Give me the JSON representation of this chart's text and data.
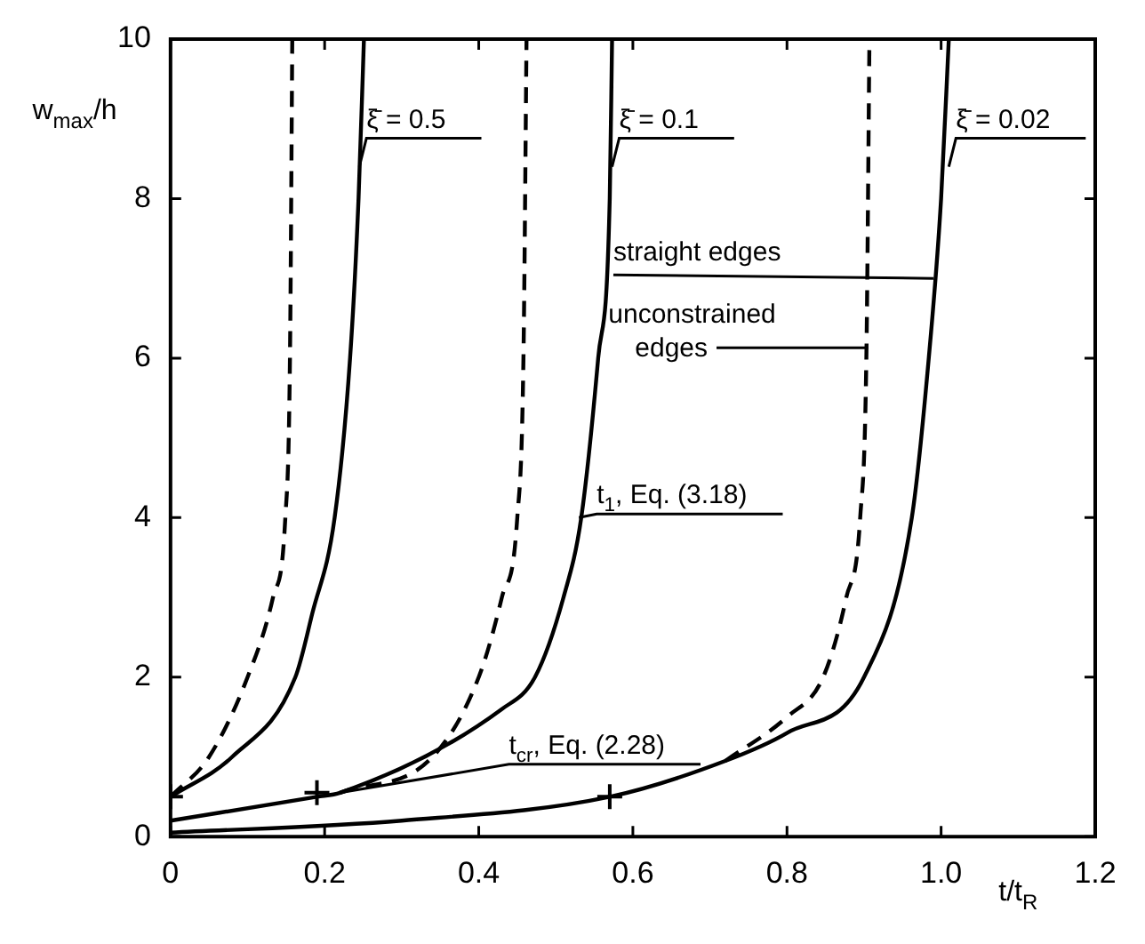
{
  "chart_data": {
    "type": "line",
    "xlabel": "t/t$_{R}$",
    "ylabel": "w$_{max}$/h",
    "xlim": [
      0,
      1.2
    ],
    "xticks": [
      0,
      0.2,
      0.4,
      0.6,
      0.8,
      {
        "value": 1.0,
        "label": "1.0"
      },
      1.2
    ],
    "ylim": [
      0,
      10
    ],
    "yticks": [
      0,
      2,
      4,
      6,
      8,
      10
    ],
    "grid": false,
    "legend": false,
    "marker": "none",
    "series": [
      {
        "color": "#000000",
        "line_style": "solid",
        "x": [
          0,
          0.08,
          0.162,
          0.184,
          0.213,
          0.233,
          0.244,
          0.251
        ],
        "values": [
          0.5,
          1,
          2,
          2.8,
          4,
          6,
          8,
          10
        ]
      },
      {
        "color": "#000000",
        "line_style": "dashed",
        "x": [
          0,
          0.05,
          0.1,
          0.133,
          0.149,
          0.155,
          0.158
        ],
        "values": [
          0.5,
          1,
          2,
          3,
          4,
          6,
          10
        ]
      },
      {
        "color": "#000000",
        "line_style": "solid",
        "x": [
          0,
          0.19,
          0.22,
          0.43,
          0.473,
          0.51,
          0.533,
          0.555,
          0.57,
          0.573
        ],
        "values": [
          0.2,
          0.5,
          0.55,
          1.6,
          2,
          3,
          4,
          6,
          8,
          10
        ]
      },
      {
        "color": "#000000",
        "line_style": "dashed",
        "x": [
          0.22,
          0.34,
          0.4,
          0.43,
          0.45,
          0.458,
          0.462
        ],
        "values": [
          0.55,
          1,
          2,
          3,
          4,
          6,
          10
        ]
      },
      {
        "color": "#000000",
        "line_style": "solid",
        "x": [
          0,
          0.3,
          0.57,
          0.72,
          0.8,
          0.9,
          0.962,
          0.984,
          1.0,
          1.01
        ],
        "values": [
          0.05,
          0.2,
          0.5,
          0.95,
          1.3,
          2,
          4,
          6,
          8,
          10
        ]
      },
      {
        "color": "#000000",
        "line_style": "dashed",
        "x": [
          0.72,
          0.8,
          0.847,
          0.877,
          0.895,
          0.903,
          0.907
        ],
        "values": [
          0.95,
          1.5,
          2,
          3,
          4,
          6,
          10
        ]
      },
      {
        "type": "scatter",
        "color": "#000000",
        "marker": "cross",
        "x": [
          0,
          0.19,
          0.57
        ],
        "values": [
          0.5,
          0.55,
          0.5
        ]
      }
    ],
    "annotations": [
      {
        "text": "ξ̄ = 0.5",
        "x": 0.245,
        "y": 8.4
      },
      {
        "text": "ξ̄ = 0.1",
        "x": 0.573,
        "y": 8.4
      },
      {
        "text": "ξ̄ = 0.02",
        "x": 1.01,
        "y": 8.4
      },
      {
        "text": "straight edges",
        "x": 0.99,
        "y": 7.0
      },
      {
        "text": "unconstrained edges",
        "x": 0.905,
        "y": 5.95
      },
      {
        "text": "t$_{1}$, Eq. (3.18)",
        "x": 0.53,
        "y": 4.0
      },
      {
        "text": "t$_{cr}$, Eq. (2.28)",
        "x": 0.22,
        "y": 0.55
      }
    ]
  }
}
